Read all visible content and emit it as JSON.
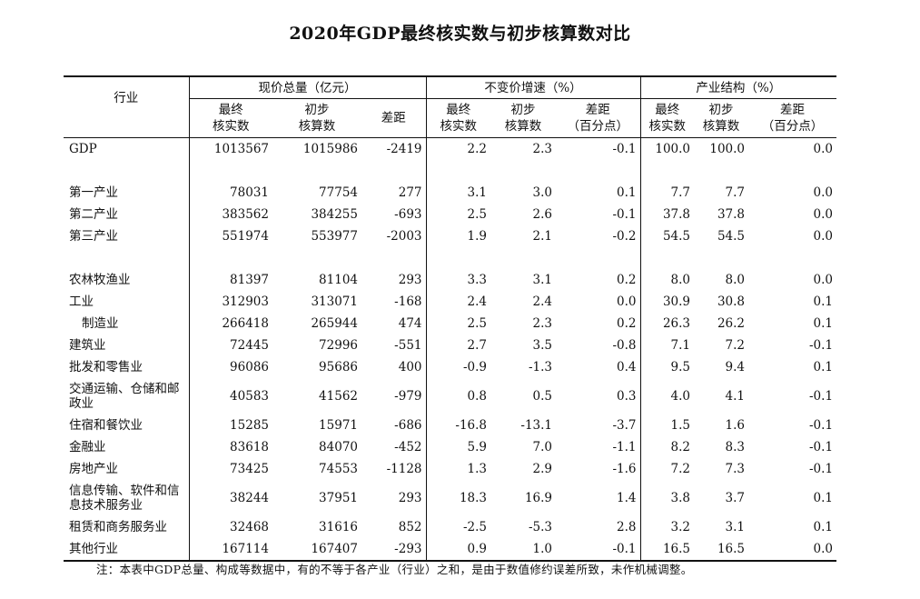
{
  "title": "2020年GDP最终核实数与初步核算数对比",
  "header": {
    "industry": "行业",
    "groups": [
      "现价总量（亿元）",
      "不变价增速（%）",
      "产业结构（%）"
    ],
    "sub": [
      "最终\n核实数",
      "初步\n核算数",
      "差距",
      "最终\n核实数",
      "初步\n核算数",
      "差距\n（百分点）",
      "最终\n核实数",
      "初步\n核算数",
      "差距\n（百分点）"
    ]
  },
  "rows": [
    {
      "name": "GDP",
      "v": [
        "1013567",
        "1015986",
        "-2419",
        "2.2",
        "2.3",
        "-0.1",
        "100.0",
        "100.0",
        "0.0"
      ]
    },
    {
      "spacer": true
    },
    {
      "name": "第一产业",
      "v": [
        "78031",
        "77754",
        "277",
        "3.1",
        "3.0",
        "0.1",
        "7.7",
        "7.7",
        "0.0"
      ]
    },
    {
      "name": "第二产业",
      "v": [
        "383562",
        "384255",
        "-693",
        "2.5",
        "2.6",
        "-0.1",
        "37.8",
        "37.8",
        "0.0"
      ]
    },
    {
      "name": "第三产业",
      "v": [
        "551974",
        "553977",
        "-2003",
        "1.9",
        "2.1",
        "-0.2",
        "54.5",
        "54.5",
        "0.0"
      ]
    },
    {
      "spacer": true
    },
    {
      "name": "农林牧渔业",
      "v": [
        "81397",
        "81104",
        "293",
        "3.3",
        "3.1",
        "0.2",
        "8.0",
        "8.0",
        "0.0"
      ]
    },
    {
      "name": "工业",
      "v": [
        "312903",
        "313071",
        "-168",
        "2.4",
        "2.4",
        "0.0",
        "30.9",
        "30.8",
        "0.1"
      ]
    },
    {
      "name": "制造业",
      "indent": true,
      "v": [
        "266418",
        "265944",
        "474",
        "2.5",
        "2.3",
        "0.2",
        "26.3",
        "26.2",
        "0.1"
      ]
    },
    {
      "name": "建筑业",
      "v": [
        "72445",
        "72996",
        "-551",
        "2.7",
        "3.5",
        "-0.8",
        "7.1",
        "7.2",
        "-0.1"
      ]
    },
    {
      "name": "批发和零售业",
      "v": [
        "96086",
        "95686",
        "400",
        "-0.9",
        "-1.3",
        "0.4",
        "9.5",
        "9.4",
        "0.1"
      ]
    },
    {
      "name": "交通运输、仓储和邮政业",
      "tall": true,
      "v": [
        "40583",
        "41562",
        "-979",
        "0.8",
        "0.5",
        "0.3",
        "4.0",
        "4.1",
        "-0.1"
      ]
    },
    {
      "name": "住宿和餐饮业",
      "v": [
        "15285",
        "15971",
        "-686",
        "-16.8",
        "-13.1",
        "-3.7",
        "1.5",
        "1.6",
        "-0.1"
      ]
    },
    {
      "name": "金融业",
      "v": [
        "83618",
        "84070",
        "-452",
        "5.9",
        "7.0",
        "-1.1",
        "8.2",
        "8.3",
        "-0.1"
      ]
    },
    {
      "name": "房地产业",
      "v": [
        "73425",
        "74553",
        "-1128",
        "1.3",
        "2.9",
        "-1.6",
        "7.2",
        "7.3",
        "-0.1"
      ]
    },
    {
      "name": "信息传输、软件和信息技术服务业",
      "tall": true,
      "v": [
        "38244",
        "37951",
        "293",
        "18.3",
        "16.9",
        "1.4",
        "3.8",
        "3.7",
        "0.1"
      ]
    },
    {
      "name": "租赁和商务服务业",
      "v": [
        "32468",
        "31616",
        "852",
        "-2.5",
        "-5.3",
        "2.8",
        "3.2",
        "3.1",
        "0.1"
      ]
    },
    {
      "name": "其他行业",
      "v": [
        "167114",
        "167407",
        "-293",
        "0.9",
        "1.0",
        "-0.1",
        "16.5",
        "16.5",
        "0.0"
      ]
    }
  ],
  "note": "注：本表中GDP总量、构成等数据中，有的不等于各产业（行业）之和，是由于数值修约误差所致，未作机械调整。"
}
